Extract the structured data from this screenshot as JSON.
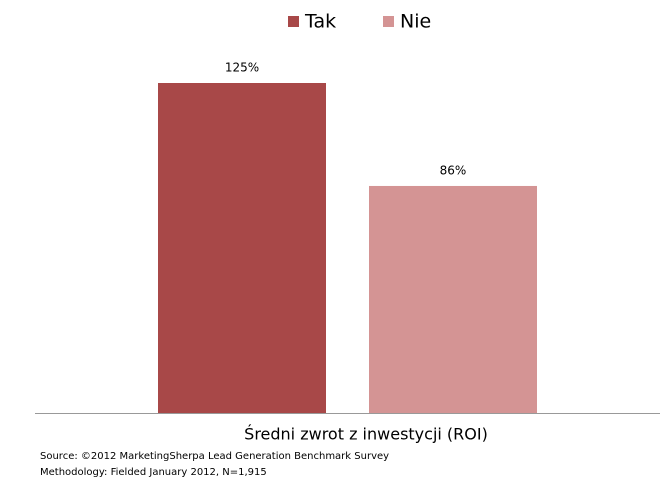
{
  "chart_data": {
    "type": "bar",
    "categories": [
      "Średni zwrot z inwestycji (ROI)"
    ],
    "series": [
      {
        "name": "Tak",
        "color": "#a84848",
        "values": [
          125
        ],
        "value_labels": [
          "125%"
        ]
      },
      {
        "name": "Nie",
        "color": "#d49494",
        "values": [
          86
        ],
        "value_labels": [
          "86%"
        ]
      }
    ],
    "notes": [
      "Source: ©2012 MarketingSherpa Lead Generation Benchmark Survey",
      "Methodology: Fielded January 2012, N=1,915"
    ]
  }
}
